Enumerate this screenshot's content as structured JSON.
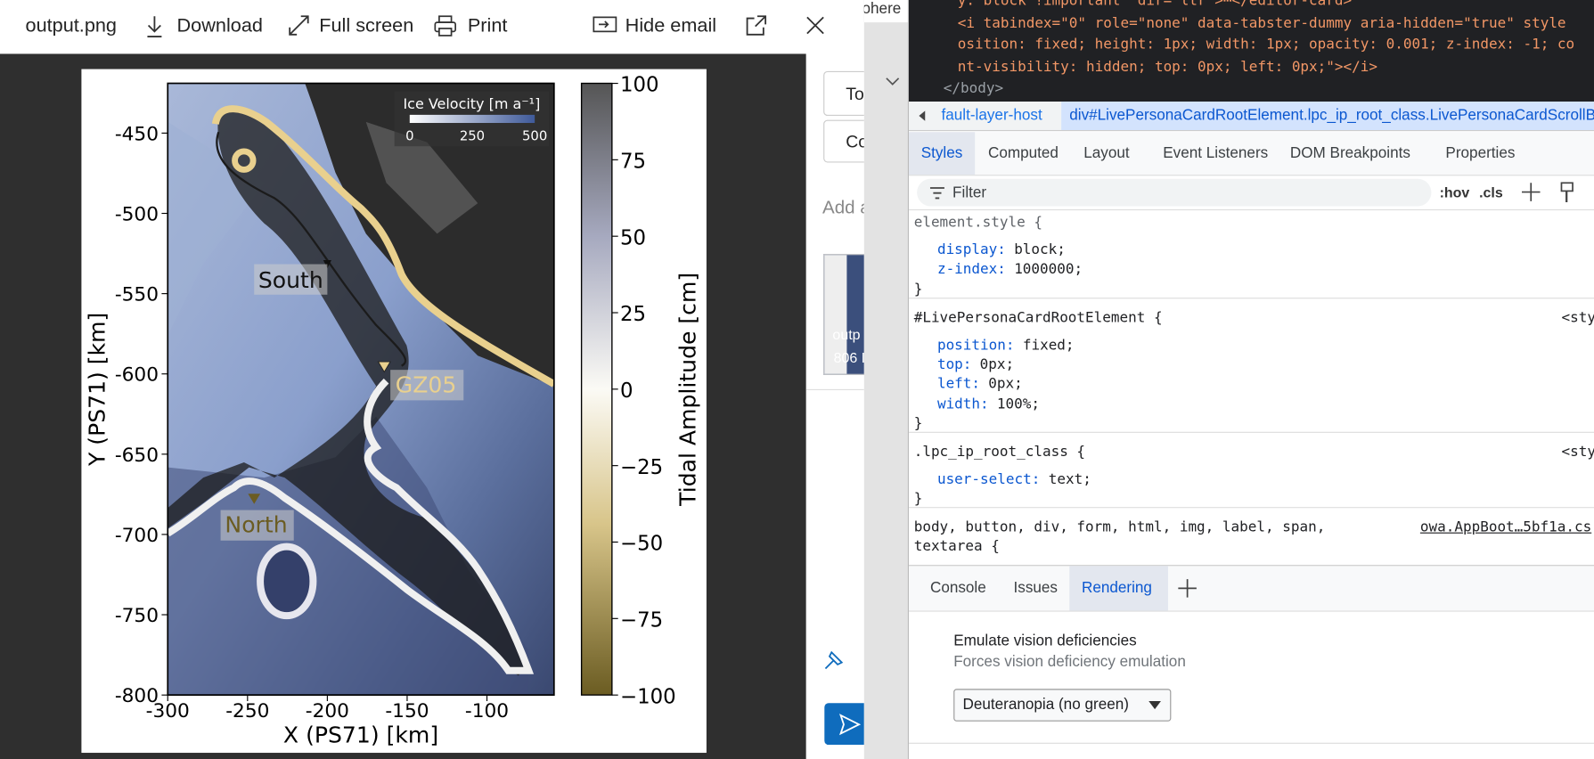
{
  "toolbar": {
    "file": "output.png",
    "download": "Download",
    "full_screen": "Full screen",
    "print": "Print",
    "hide_email": "Hide email"
  },
  "figure": {
    "x_label": "X (PS71) [km]",
    "y_label": "Y (PS71) [km]",
    "x_ticks": [
      "-300",
      "-250",
      "-200",
      "-150",
      "-100"
    ],
    "y_ticks": [
      "-450",
      "-500",
      "-550",
      "-600",
      "-650",
      "-700",
      "-750",
      "-800"
    ],
    "colorbar_label": "Tidal Amplitude [cm]",
    "colorbar_ticks": [
      "100",
      "75",
      "50",
      "25",
      "0",
      "−25",
      "−50",
      "−75",
      "−100"
    ],
    "annotations": {
      "south": "South",
      "gz05": "GZ05",
      "north": "North"
    },
    "legend": {
      "title": "Ice Velocity [m a⁻¹]",
      "ticks": [
        "0",
        "250",
        "500"
      ]
    }
  },
  "side_panel": {
    "to": "To",
    "cc": "Co",
    "add": "Add a",
    "attachment_name": "outp",
    "attachment_size": "806 I",
    "edge": "ohere"
  },
  "devtools": {
    "code_lines": [
      "y: block !important\" dir=\"ltr\">⋯</editor-card>",
      "<i tabindex=\"0\" role=\"none\" data-tabster-dummy aria-hidden=\"true\" style",
      "osition: fixed; height: 1px; width: 1px; opacity: 0.001; z-index: -1; co",
      "nt-visibility: hidden; top: 0px; left: 0px;\"></i>",
      "</body>"
    ],
    "breadcrumb": [
      "fault-layer-host",
      "div#LivePersonaCardRootElement.lpc_ip_root_class.LivePersonaCardScrollB"
    ],
    "tabs": [
      "Styles",
      "Computed",
      "Layout",
      "Event Listeners",
      "DOM Breakpoints",
      "Properties"
    ],
    "filter": "Filter",
    "hov": ":hov",
    "cls": ".cls",
    "close_brace": "}",
    "rules": [
      {
        "selector": "element.style {",
        "props": [
          [
            "display:",
            "block;"
          ],
          [
            "z-index:",
            "1000000;"
          ]
        ]
      },
      {
        "selector": "#LivePersonaCardRootElement {",
        "source": "<sty",
        "props": [
          [
            "position:",
            "fixed;"
          ],
          [
            "top:",
            "0px;"
          ],
          [
            "left:",
            "0px;"
          ],
          [
            "width:",
            "100%;"
          ]
        ]
      },
      {
        "selector": ".lpc_ip_root_class {",
        "source": "<sty",
        "props": [
          [
            "user-select:",
            "text;"
          ]
        ]
      },
      {
        "selector": "body, button, div, form, html, img, label, span,",
        "selector2": "textarea {",
        "source": "owa.AppBoot…5bf1a.cs"
      }
    ],
    "drawer_tabs": [
      "Console",
      "Issues",
      "Rendering"
    ],
    "rendering": {
      "title": "Emulate vision deficiencies",
      "subtitle": "Forces vision deficiency emulation",
      "select": "Deuteranopia (no green)"
    }
  }
}
